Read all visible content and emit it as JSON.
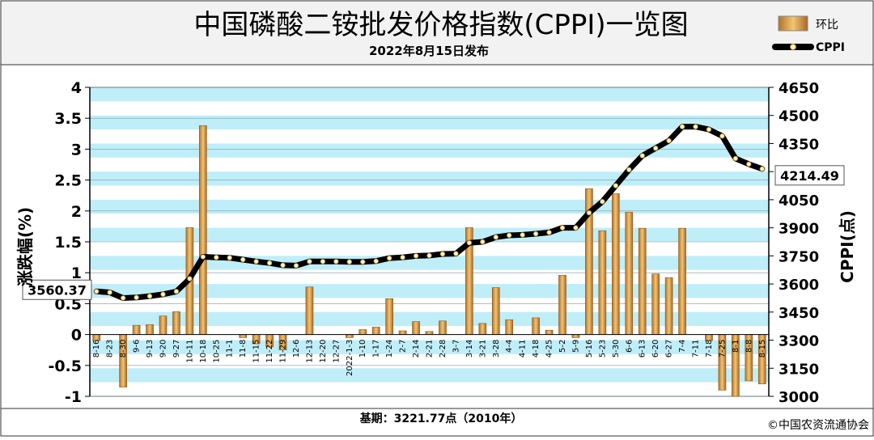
{
  "chart_data": {
    "type": "bar+line",
    "title": "中国磷酸二铵批发价格指数(CPPI)一览图",
    "subtitle": "2022年8月15日发布",
    "ylabel_left": "涨跌幅(%)",
    "ylabel_right": "CPPI(点)",
    "ylim_left": [
      -1,
      4
    ],
    "ylim_right": [
      3000,
      4650
    ],
    "left_ticks": [
      "4",
      "3.5",
      "3",
      "2.5",
      "2",
      "1.5",
      "1",
      "0.5",
      "0",
      "-0.5",
      "-1"
    ],
    "right_ticks": [
      "4650",
      "4500",
      "4350",
      "4200",
      "4050",
      "3900",
      "3750",
      "3600",
      "3450",
      "3300",
      "3150",
      "3000"
    ],
    "legend": {
      "position": "top-right",
      "bar_label": "环比",
      "line_label": "CPPI"
    },
    "categories": [
      "8-16",
      "8-23",
      "8-30",
      "9-6",
      "9-13",
      "9-20",
      "9-27",
      "10-11",
      "10-18",
      "10-25",
      "11-1",
      "11-8",
      "11-15",
      "11-22",
      "11-29",
      "12-6",
      "12-13",
      "12-20",
      "12-27",
      "2022-1-3",
      "1-10",
      "1-17",
      "1-24",
      "2-7",
      "2-14",
      "2-21",
      "2-28",
      "3-7",
      "3-14",
      "3-21",
      "3-28",
      "4-4",
      "4-11",
      "4-18",
      "4-25",
      "5-2",
      "5-9",
      "5-16",
      "5-23",
      "5-30",
      "6-6",
      "6-13",
      "6-20",
      "6-27",
      "7-4",
      "7-11",
      "7-18",
      "7-25",
      "8-1",
      "8-8",
      "8-15"
    ],
    "series": [
      {
        "name": "环比",
        "type": "bar",
        "values": [
          -0.1,
          0.0,
          -0.85,
          0.15,
          0.16,
          0.3,
          0.37,
          1.73,
          3.38,
          0.0,
          0.0,
          -0.05,
          -0.15,
          -0.2,
          -0.25,
          0.0,
          0.77,
          0.0,
          0.0,
          -0.05,
          0.08,
          0.12,
          0.58,
          0.06,
          0.21,
          0.05,
          0.22,
          0.0,
          1.73,
          0.18,
          0.76,
          0.24,
          0.0,
          0.27,
          0.07,
          0.96,
          -0.05,
          2.36,
          1.68,
          2.28,
          1.98,
          1.72,
          0.98,
          0.92,
          1.72,
          0.0,
          -0.1,
          -0.9,
          -1.0,
          -0.75,
          -0.8
        ]
      },
      {
        "name": "CPPI",
        "type": "line",
        "values": [
          3560.37,
          3555,
          3525,
          3528,
          3535,
          3545,
          3560,
          3628,
          3745,
          3742,
          3740,
          3730,
          3720,
          3712,
          3700,
          3698,
          3720,
          3720,
          3720,
          3718,
          3718,
          3722,
          3738,
          3742,
          3750,
          3752,
          3760,
          3762,
          3820,
          3825,
          3850,
          3860,
          3862,
          3868,
          3875,
          3900,
          3900,
          3980,
          4040,
          4125,
          4210,
          4285,
          4325,
          4365,
          4440,
          4440,
          4425,
          4390,
          4270,
          4240,
          4214.49
        ]
      }
    ],
    "annotations": {
      "first_value": "3560.37",
      "last_value": "4214.49"
    },
    "footer_left": "基期：3221.77点（2010年）",
    "footer_right": "©中国农资流通协会"
  }
}
